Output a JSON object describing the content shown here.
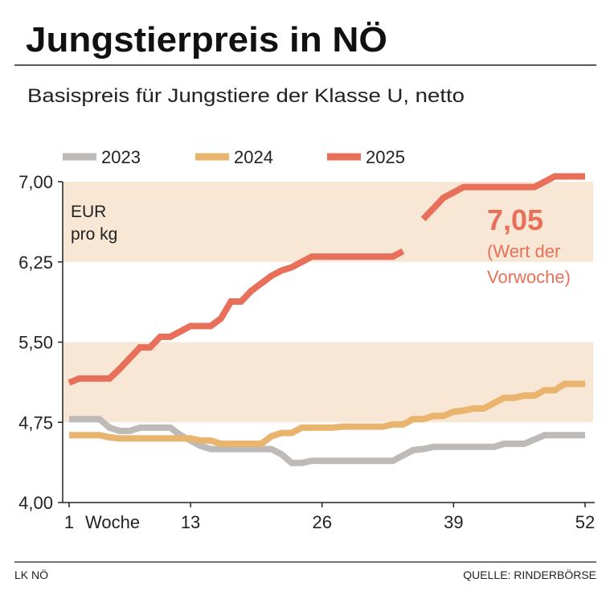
{
  "title": "Jungstierpreis in NÖ",
  "subtitle": "Basispreis für Jungstiere der Klasse U, netto",
  "footer": {
    "left": "LK NÖ",
    "right": "QUELLE: RINDERBÖRSE"
  },
  "colors": {
    "2023": "#bdbab7",
    "2024": "#e9b46e",
    "2025": "#e8705a",
    "band": "#f8e7d4"
  },
  "chart_data": {
    "type": "line",
    "unit_label": [
      "EUR",
      "pro kg"
    ],
    "xlabel": "Woche",
    "xlim": [
      1,
      52
    ],
    "ylim": [
      4.0,
      7.0
    ],
    "x_ticks": [
      1,
      13,
      26,
      39,
      52
    ],
    "x_tick_labels": [
      "1",
      "13",
      "26",
      "39",
      "52"
    ],
    "y_ticks": [
      4.0,
      4.75,
      5.5,
      6.25,
      7.0
    ],
    "y_tick_labels": [
      "4,00",
      "4,75",
      "5,50",
      "6,25",
      "7,00"
    ],
    "bands": [
      [
        4.75,
        5.5
      ],
      [
        6.25,
        7.0
      ]
    ],
    "legend_position": "top",
    "grid": false,
    "annotation": {
      "value": "7,05",
      "lines": [
        "(Wert der",
        "Vorwoche)"
      ]
    },
    "series": [
      {
        "name": "2023",
        "values": [
          4.78,
          4.78,
          4.78,
          4.78,
          4.7,
          4.67,
          4.67,
          4.7,
          4.7,
          4.7,
          4.7,
          4.63,
          4.58,
          4.53,
          4.5,
          4.5,
          4.5,
          4.5,
          4.5,
          4.5,
          4.5,
          4.45,
          4.37,
          4.37,
          4.39,
          4.39,
          4.39,
          4.39,
          4.39,
          4.39,
          4.39,
          4.39,
          4.39,
          4.44,
          4.49,
          4.5,
          4.52,
          4.52,
          4.52,
          4.52,
          4.52,
          4.52,
          4.52,
          4.55,
          4.55,
          4.55,
          4.59,
          4.63,
          4.63,
          4.63,
          4.63,
          4.63
        ]
      },
      {
        "name": "2024",
        "values": [
          4.63,
          4.63,
          4.63,
          4.63,
          4.61,
          4.6,
          4.6,
          4.6,
          4.6,
          4.6,
          4.6,
          4.6,
          4.6,
          4.58,
          4.58,
          4.55,
          4.55,
          4.55,
          4.55,
          4.55,
          4.62,
          4.65,
          4.65,
          4.7,
          4.7,
          4.7,
          4.7,
          4.71,
          4.71,
          4.71,
          4.71,
          4.71,
          4.73,
          4.73,
          4.78,
          4.78,
          4.81,
          4.81,
          4.85,
          4.86,
          4.88,
          4.88,
          4.93,
          4.98,
          4.98,
          5.0,
          5.0,
          5.05,
          5.05,
          5.11,
          5.11,
          5.11
        ]
      },
      {
        "name": "2025",
        "values": [
          5.12,
          5.16,
          5.16,
          5.16,
          5.16,
          5.25,
          5.35,
          5.45,
          5.45,
          5.55,
          5.55,
          5.6,
          5.65,
          5.65,
          5.65,
          5.72,
          5.88,
          5.88,
          5.98,
          6.05,
          6.12,
          6.17,
          6.2,
          6.25,
          6.3,
          6.3,
          6.3,
          6.3,
          6.3,
          6.3,
          6.3,
          6.3,
          6.3,
          6.35,
          null,
          6.65,
          6.75,
          6.85,
          6.9,
          6.95,
          6.95,
          6.95,
          6.95,
          6.95,
          6.95,
          6.95,
          6.95,
          7.0,
          7.05,
          7.05,
          7.05,
          7.05
        ]
      }
    ]
  }
}
